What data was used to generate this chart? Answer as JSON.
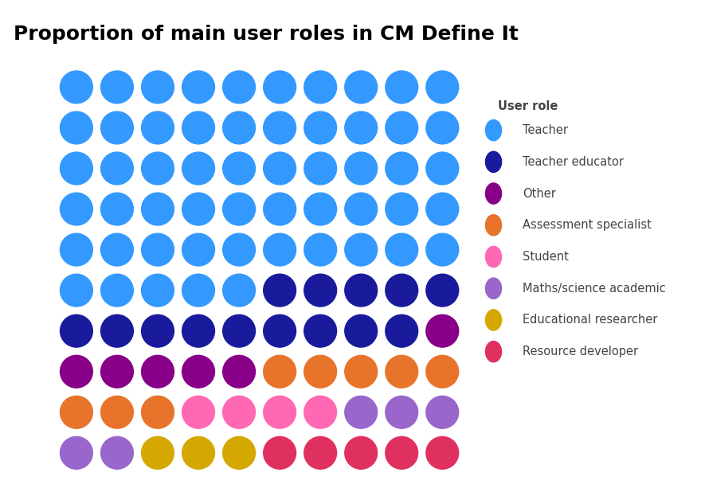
{
  "title": "Proportion of main user roles in CM Define It",
  "grid_rows": 10,
  "grid_cols": 10,
  "categories": [
    "Teacher",
    "Teacher educator",
    "Other",
    "Assessment specialist",
    "Student",
    "Maths/science academic",
    "Educational researcher",
    "Resource developer"
  ],
  "counts": [
    53,
    14,
    6,
    8,
    4,
    5,
    3,
    4
  ],
  "fill_order": "top_to_bottom_left_to_right",
  "colors": [
    "#3399FF",
    "#1A1A9C",
    "#880088",
    "#E8732A",
    "#FF69B4",
    "#9966CC",
    "#D4A800",
    "#E03060"
  ],
  "legend_title": "User role",
  "background_color": "#FFFFFF",
  "title_fontsize": 18,
  "legend_fontsize": 10.5,
  "figwidth": 8.8,
  "figheight": 6.28,
  "dpi": 100
}
